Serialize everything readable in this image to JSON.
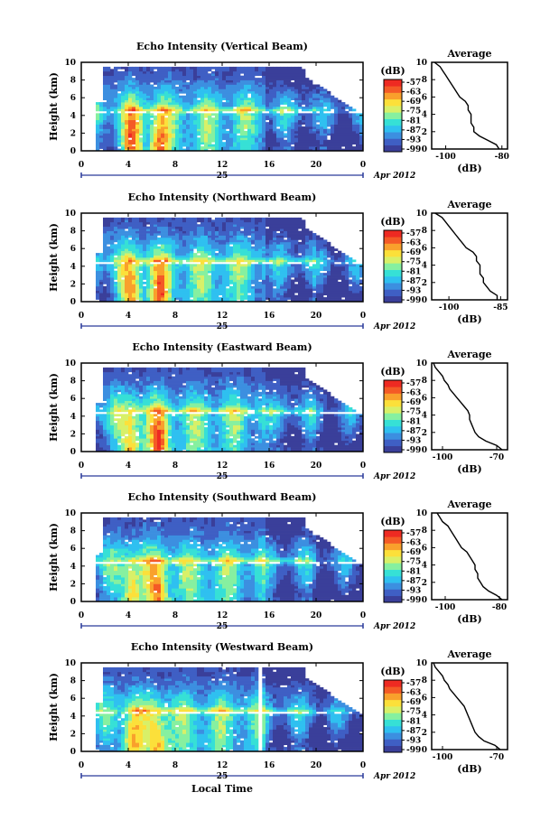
{
  "colors": {
    "scale": [
      "#3a3f9a",
      "#3f5fc4",
      "#3c8fe0",
      "#2fc0f0",
      "#36e0d6",
      "#86f0a0",
      "#d8f068",
      "#fce03a",
      "#f9a02c",
      "#f45a26",
      "#ee2a22"
    ],
    "line": "#000000",
    "timeline": "#2b3a9a"
  },
  "chart_data": [
    {
      "type": "heatmap",
      "title": "Echo Intensity (Vertical Beam)",
      "ylabel": "Height (km)",
      "xticks": [
        "0",
        "4",
        "8",
        "12",
        "16",
        "20",
        "0"
      ],
      "yticks": [
        "0",
        "2",
        "4",
        "6",
        "8",
        "10"
      ],
      "xlim": [
        0,
        24
      ],
      "ylim": [
        0,
        10
      ],
      "date_day": "25",
      "date_month": "Apr 2012",
      "colorbar": {
        "unit": "(dB)",
        "ticks": [
          "-57",
          "-63",
          "-69",
          "-75",
          "-81",
          "-87",
          "-93",
          "-99"
        ]
      },
      "average": {
        "title": "Average",
        "xlabel": "(dB)",
        "xticks": [
          "-100",
          "-80"
        ],
        "xlim": [
          -105,
          -78
        ],
        "yticks": [
          "0",
          "2",
          "4",
          "6",
          "8",
          "10"
        ],
        "profile_db": [
          -81,
          -82,
          -85,
          -88,
          -90,
          -90,
          -91,
          -91,
          -91,
          -92,
          -92,
          -93,
          -95,
          -96,
          -97,
          -98,
          -99,
          -100,
          -101,
          -102,
          -104
        ]
      }
    },
    {
      "type": "heatmap",
      "title": "Echo Intensity (Northward Beam)",
      "ylabel": "Height (km)",
      "xticks": [
        "0",
        "4",
        "8",
        "12",
        "16",
        "20",
        "0"
      ],
      "yticks": [
        "0",
        "2",
        "4",
        "6",
        "8",
        "10"
      ],
      "xlim": [
        0,
        24
      ],
      "ylim": [
        0,
        10
      ],
      "date_day": "25",
      "date_month": "Apr 2012",
      "colorbar": {
        "unit": "(dB)",
        "ticks": [
          "-57",
          "-63",
          "-69",
          "-75",
          "-81",
          "-87",
          "-93",
          "-99"
        ]
      },
      "average": {
        "title": "Average",
        "xlabel": "(dB)",
        "xticks": [
          "-100",
          "-85"
        ],
        "xlim": [
          -105,
          -83
        ],
        "yticks": [
          "0",
          "2",
          "4",
          "6",
          "8",
          "10"
        ],
        "profile_db": [
          -86,
          -86,
          -88,
          -89,
          -90,
          -90,
          -91,
          -91,
          -91,
          -92,
          -92,
          -93,
          -95,
          -96,
          -97,
          -98,
          -99,
          -100,
          -101,
          -102,
          -104
        ]
      }
    },
    {
      "type": "heatmap",
      "title": "Echo Intensity (Eastward Beam)",
      "ylabel": "Height (km)",
      "xticks": [
        "0",
        "4",
        "8",
        "12",
        "16",
        "20",
        "0"
      ],
      "yticks": [
        "0",
        "2",
        "4",
        "6",
        "8",
        "10"
      ],
      "xlim": [
        0,
        24
      ],
      "ylim": [
        0,
        10
      ],
      "date_day": "25",
      "date_month": "Apr 2012",
      "colorbar": {
        "unit": "(dB)",
        "ticks": [
          "-57",
          "-63",
          "-69",
          "-75",
          "-81",
          "-87",
          "-93",
          "-99"
        ]
      },
      "average": {
        "title": "Average",
        "xlabel": "(dB)",
        "xticks": [
          "-100",
          "-70"
        ],
        "xlim": [
          -106,
          -64
        ],
        "yticks": [
          "0",
          "2",
          "4",
          "6",
          "8",
          "10"
        ],
        "profile_db": [
          -67,
          -70,
          -76,
          -80,
          -82,
          -83,
          -84,
          -85,
          -85,
          -86,
          -88,
          -90,
          -92,
          -94,
          -96,
          -97,
          -99,
          -100,
          -102,
          -104,
          -105
        ]
      }
    },
    {
      "type": "heatmap",
      "title": "Echo Intensity (Southward Beam)",
      "ylabel": "Height (km)",
      "xticks": [
        "0",
        "4",
        "8",
        "12",
        "16",
        "20",
        "0"
      ],
      "yticks": [
        "0",
        "2",
        "4",
        "6",
        "8",
        "10"
      ],
      "xlim": [
        0,
        24
      ],
      "ylim": [
        0,
        10
      ],
      "date_day": "25",
      "date_month": "Apr 2012",
      "colorbar": {
        "unit": "(dB)",
        "ticks": [
          "-57",
          "-63",
          "-69",
          "-75",
          "-81",
          "-87",
          "-93",
          "-99"
        ]
      },
      "average": {
        "title": "Average",
        "xlabel": "(dB)",
        "xticks": [
          "-100",
          "-80"
        ],
        "xlim": [
          -105,
          -77
        ],
        "yticks": [
          "0",
          "2",
          "4",
          "6",
          "8",
          "10"
        ],
        "profile_db": [
          -79,
          -81,
          -84,
          -86,
          -87,
          -88,
          -88,
          -89,
          -89,
          -90,
          -91,
          -92,
          -94,
          -95,
          -96,
          -97,
          -98,
          -99,
          -101,
          -102,
          -103
        ]
      }
    },
    {
      "type": "heatmap",
      "title": "Echo Intensity (Westward Beam)",
      "ylabel": "Height (km)",
      "xlabel": "Local Time",
      "xticks": [
        "0",
        "4",
        "8",
        "12",
        "16",
        "20",
        "0"
      ],
      "yticks": [
        "0",
        "2",
        "4",
        "6",
        "8",
        "10"
      ],
      "xlim": [
        0,
        24
      ],
      "ylim": [
        0,
        10
      ],
      "date_day": "25",
      "date_month": "Apr 2012",
      "colorbar": {
        "unit": "(dB)",
        "ticks": [
          "-57",
          "-63",
          "-69",
          "-75",
          "-81",
          "-87",
          "-93",
          "-99"
        ]
      },
      "average": {
        "title": "Average",
        "xlabel": "(dB)",
        "xticks": [
          "-100",
          "-70"
        ],
        "xlim": [
          -106,
          -64
        ],
        "yticks": [
          "0",
          "2",
          "4",
          "6",
          "8",
          "10"
        ],
        "profile_db": [
          -68,
          -71,
          -77,
          -80,
          -82,
          -83,
          -84,
          -85,
          -86,
          -87,
          -88,
          -90,
          -92,
          -94,
          -96,
          -97,
          -99,
          -100,
          -102,
          -104,
          -105
        ]
      }
    }
  ]
}
